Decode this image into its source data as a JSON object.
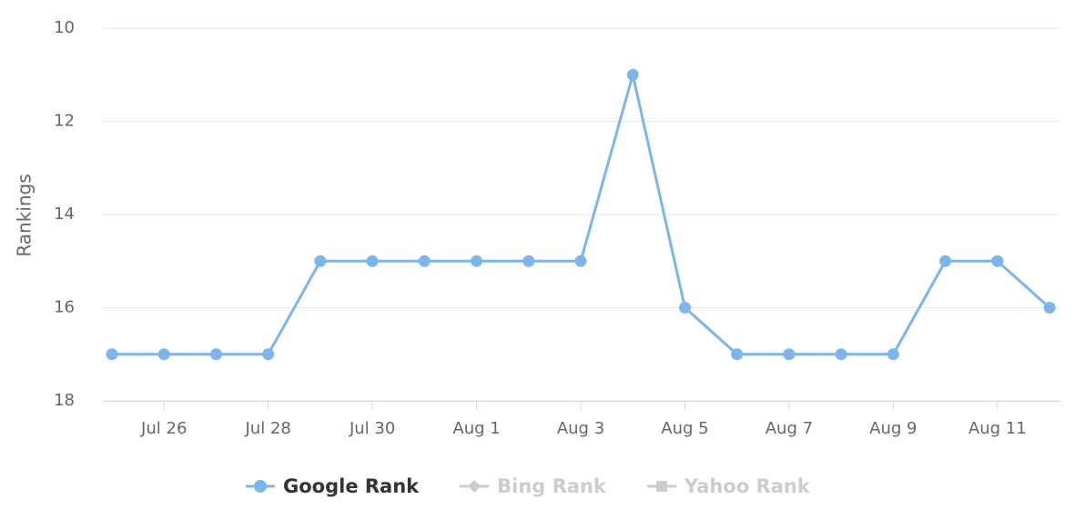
{
  "chart_data": {
    "type": "line",
    "y_label": "Rankings",
    "categories": [
      null,
      "Jul 26",
      null,
      "Jul 28",
      null,
      "Jul 30",
      null,
      "Aug 1",
      null,
      "Aug 3",
      null,
      "Aug 5",
      null,
      "Aug 7",
      null,
      "Aug 9",
      null,
      "Aug 11",
      null
    ],
    "ylim": [
      10,
      18
    ],
    "yticks": [
      10,
      12,
      14,
      16,
      18
    ],
    "y_reversed": true,
    "grid": true,
    "series": [
      {
        "name": "Google Rank",
        "color": "#7cb5ec",
        "visible": true,
        "values": [
          17,
          17,
          17,
          17,
          15,
          15,
          15,
          15,
          15,
          15,
          11,
          16,
          17,
          17,
          17,
          17,
          15,
          15,
          16
        ]
      },
      {
        "name": "Bing Rank",
        "color": "#cccccc",
        "visible": false,
        "marker": "diamond"
      },
      {
        "name": "Yahoo Rank",
        "color": "#cccccc",
        "visible": false,
        "marker": "square"
      }
    ]
  }
}
